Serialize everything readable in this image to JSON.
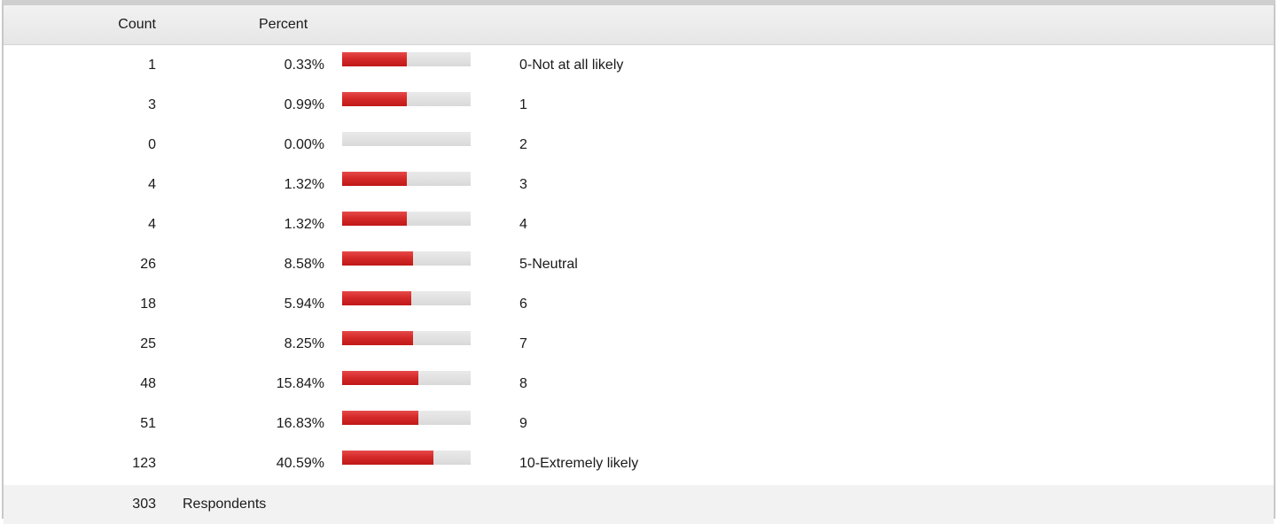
{
  "header": {
    "count_label": "Count",
    "percent_label": "Percent"
  },
  "colors": {
    "bar_fill": "#d52a2a",
    "bar_track": "#e0e0e0",
    "header_bg": "#ececec",
    "footer_bg": "#f2f2f2"
  },
  "rows": [
    {
      "count": "1",
      "percent": "0.33%",
      "label": "0-Not at all likely",
      "bar_fraction": 0.5
    },
    {
      "count": "3",
      "percent": "0.99%",
      "label": "1",
      "bar_fraction": 0.5
    },
    {
      "count": "0",
      "percent": "0.00%",
      "label": "2",
      "bar_fraction": 0.0
    },
    {
      "count": "4",
      "percent": "1.32%",
      "label": "3",
      "bar_fraction": 0.5
    },
    {
      "count": "4",
      "percent": "1.32%",
      "label": "4",
      "bar_fraction": 0.5
    },
    {
      "count": "26",
      "percent": "8.58%",
      "label": "5-Neutral",
      "bar_fraction": 0.55
    },
    {
      "count": "18",
      "percent": "5.94%",
      "label": "6",
      "bar_fraction": 0.54
    },
    {
      "count": "25",
      "percent": "8.25%",
      "label": "7",
      "bar_fraction": 0.55
    },
    {
      "count": "48",
      "percent": "15.84%",
      "label": "8",
      "bar_fraction": 0.59
    },
    {
      "count": "51",
      "percent": "16.83%",
      "label": "9",
      "bar_fraction": 0.59
    },
    {
      "count": "123",
      "percent": "40.59%",
      "label": "10-Extremely likely",
      "bar_fraction": 0.71
    }
  ],
  "footer": {
    "total": "303",
    "total_label": "Respondents"
  }
}
